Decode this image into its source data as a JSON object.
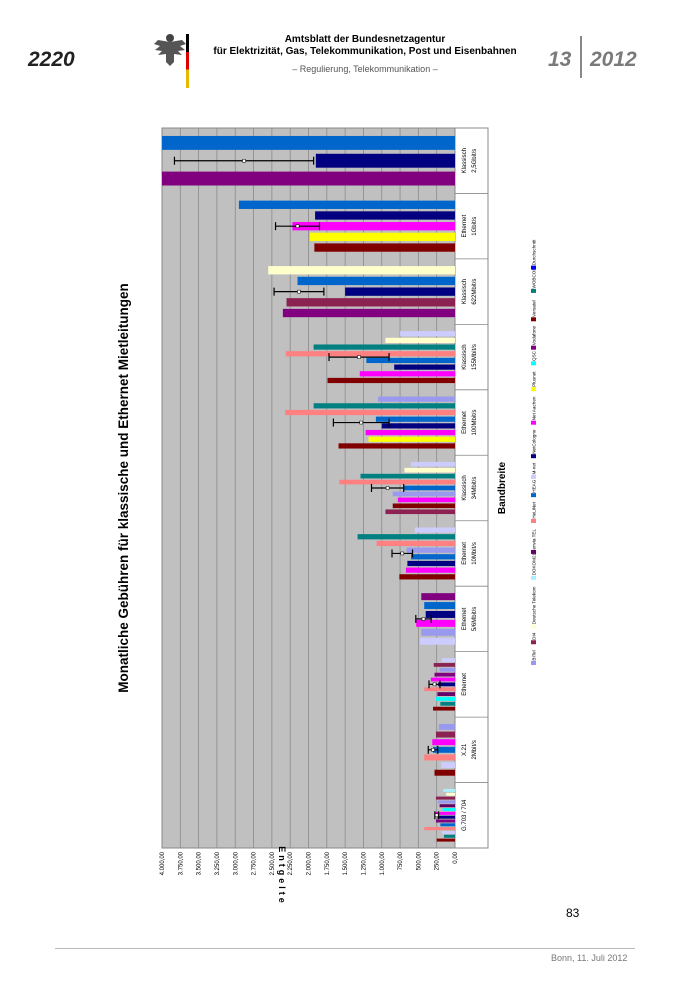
{
  "header": {
    "page_number": "2220",
    "title_line1": "Amtsblatt der Bundesnetzagentur",
    "title_line2": "für Elektrizität, Gas, Telekommunikation, Post und Eisenbahnen",
    "subtitle": "– Regulierung, Telekommunikation –",
    "issue_number": "13",
    "issue_year": "2012"
  },
  "footer": {
    "page_number": "83",
    "place_date": "Bonn, 11. Juli 2012"
  },
  "colors": {
    "plot_bg": "#c0c0c0",
    "error_bar": "#000000"
  },
  "chart_data": {
    "type": "bar",
    "orientation": "horizontal (page rotated)",
    "title": "Monatliche Gebühren für klassische und Ethernet Mietleitungen",
    "xlabel": "Bandbreite",
    "ylabel": "Entgelte",
    "ylim": [
      0,
      4000
    ],
    "tick_labels": [
      "0,00",
      "250,00",
      "500,00",
      "750,00",
      "1.000,00",
      "1.250,00",
      "1.500,00",
      "1.750,00",
      "2.000,00",
      "2.250,00",
      "2.500,00",
      "2.750,00",
      "3.000,00",
      "3.250,00",
      "3.500,00",
      "3.750,00",
      "4.000,00"
    ],
    "legend": [
      {
        "name": "BITel",
        "color": "#9999ee"
      },
      {
        "name": "DI4",
        "color": "#8b2252"
      },
      {
        "name": "Deutsche Telekom",
        "color": "#ffffcc"
      },
      {
        "name": "DOKOM21",
        "color": "#aaeeff"
      },
      {
        "name": "envia TEL",
        "color": "#660066"
      },
      {
        "name": "HeLiNet",
        "color": "#ff8080"
      },
      {
        "name": "HEAG",
        "color": "#0066cc"
      },
      {
        "name": "M-net",
        "color": "#ccccff"
      },
      {
        "name": "NetCologne",
        "color": "#000080"
      },
      {
        "name": "Net Aachen",
        "color": "#ff00ff"
      },
      {
        "name": "Plusnet",
        "color": "#ffff00"
      },
      {
        "name": "QSC",
        "color": "#00ffff"
      },
      {
        "name": "Vodafone",
        "color": "#800080"
      },
      {
        "name": "Versatel",
        "color": "#800000"
      },
      {
        "name": "WOBCOM",
        "color": "#008080"
      },
      {
        "name": "Durchschnitt",
        "color": "#0000ff"
      }
    ],
    "groups": [
      {
        "label_line1": "G.703 / 704",
        "label_line2": "",
        "mean": 250,
        "err": 25,
        "bars": [
          {
            "c": "#800000",
            "v": 250
          },
          {
            "c": "#008080",
            "v": 150
          },
          {
            "c": "#ccccff",
            "v": 180
          },
          {
            "c": "#ff8080",
            "v": 420
          },
          {
            "c": "#0066cc",
            "v": 200
          },
          {
            "c": "#800080",
            "v": 260
          },
          {
            "c": "#000080",
            "v": 240
          },
          {
            "c": "#ff00ff",
            "v": 280
          },
          {
            "c": "#00ffff",
            "v": 170
          },
          {
            "c": "#660066",
            "v": 210
          },
          {
            "c": "#9999ee",
            "v": 230
          },
          {
            "c": "#8b2252",
            "v": 260
          },
          {
            "c": "#ffffcc",
            "v": 120
          },
          {
            "c": "#aaeeff",
            "v": 160
          }
        ]
      },
      {
        "label_line1": "X.21",
        "label_line2": "2Mbit/s",
        "mean": 300,
        "err": 65,
        "bars": [
          {
            "c": "#800000",
            "v": 280
          },
          {
            "c": "#ccccff",
            "v": 190
          },
          {
            "c": "#ff8080",
            "v": 420
          },
          {
            "c": "#0066cc",
            "v": 300
          },
          {
            "c": "#ff00ff",
            "v": 310
          },
          {
            "c": "#8b2252",
            "v": 260
          },
          {
            "c": "#9999ee",
            "v": 220
          }
        ]
      },
      {
        "label_line1": "Ethernet",
        "label_line2": "",
        "mean": 280,
        "err": 75,
        "bars": [
          {
            "c": "#800000",
            "v": 300
          },
          {
            "c": "#008080",
            "v": 200
          },
          {
            "c": "#00ffff",
            "v": 260
          },
          {
            "c": "#660066",
            "v": 240
          },
          {
            "c": "#ff8080",
            "v": 420
          },
          {
            "c": "#000080",
            "v": 230
          },
          {
            "c": "#ff00ff",
            "v": 330
          },
          {
            "c": "#800080",
            "v": 280
          },
          {
            "c": "#9999ee",
            "v": 210
          },
          {
            "c": "#8b2252",
            "v": 290
          },
          {
            "c": "#ccccff",
            "v": 180
          }
        ]
      },
      {
        "label_line1": "Ethernet",
        "label_line2": "5/6Mbit/s",
        "mean": 430,
        "err": 105,
        "bars": [
          {
            "c": "#ccccff",
            "v": 480
          },
          {
            "c": "#9999ee",
            "v": 460
          },
          {
            "c": "#ff00ff",
            "v": 530
          },
          {
            "c": "#000080",
            "v": 400
          },
          {
            "c": "#0066cc",
            "v": 420
          },
          {
            "c": "#800080",
            "v": 460
          }
        ]
      },
      {
        "label_line1": "Ethernet",
        "label_line2": "10Mbit/s",
        "mean": 720,
        "err": 140,
        "bars": [
          {
            "c": "#800000",
            "v": 760
          },
          {
            "c": "#ff00ff",
            "v": 670
          },
          {
            "c": "#000080",
            "v": 650
          },
          {
            "c": "#0066cc",
            "v": 600
          },
          {
            "c": "#9999ee",
            "v": 660
          },
          {
            "c": "#ff8080",
            "v": 1070
          },
          {
            "c": "#008080",
            "v": 1330
          },
          {
            "c": "#ccccff",
            "v": 550
          }
        ]
      },
      {
        "label_line1": "Klassisch",
        "label_line2": "34Mbit/s",
        "mean": 920,
        "err": 220,
        "bars": [
          {
            "c": "#8b2252",
            "v": 950
          },
          {
            "c": "#800000",
            "v": 850
          },
          {
            "c": "#ff00ff",
            "v": 780
          },
          {
            "c": "#9999ee",
            "v": 850
          },
          {
            "c": "#0066cc",
            "v": 700
          },
          {
            "c": "#ff8080",
            "v": 1580
          },
          {
            "c": "#008080",
            "v": 1290
          },
          {
            "c": "#ffffcc",
            "v": 690
          },
          {
            "c": "#ccccff",
            "v": 600
          }
        ]
      },
      {
        "label_line1": "Ethernet",
        "label_line2": "100Mbit/s",
        "mean": 1280,
        "err": 380,
        "bars": [
          {
            "c": "#800000",
            "v": 1590
          },
          {
            "c": "#ffff00",
            "v": 1180
          },
          {
            "c": "#ff00ff",
            "v": 1220
          },
          {
            "c": "#000080",
            "v": 1000
          },
          {
            "c": "#0066cc",
            "v": 1080
          },
          {
            "c": "#ff8080",
            "v": 2320
          },
          {
            "c": "#008080",
            "v": 1930
          },
          {
            "c": "#9999ee",
            "v": 1050
          }
        ]
      },
      {
        "label_line1": "Klassisch",
        "label_line2": "155Mbit/s",
        "mean": 1310,
        "err": 410,
        "bars": [
          {
            "c": "#800000",
            "v": 1740
          },
          {
            "c": "#ff00ff",
            "v": 1300
          },
          {
            "c": "#000080",
            "v": 830
          },
          {
            "c": "#0066cc",
            "v": 1210
          },
          {
            "c": "#ff8080",
            "v": 2310
          },
          {
            "c": "#008080",
            "v": 1930
          },
          {
            "c": "#ffffcc",
            "v": 950
          },
          {
            "c": "#ccccff",
            "v": 750
          }
        ]
      },
      {
        "label_line1": "Klassisch",
        "label_line2": "622Mbit/s",
        "mean": 2130,
        "err": 340,
        "bars": [
          {
            "c": "#800080",
            "v": 2350
          },
          {
            "c": "#8b2252",
            "v": 2300
          },
          {
            "c": "#000080",
            "v": 1500
          },
          {
            "c": "#0066cc",
            "v": 2150
          },
          {
            "c": "#ffffcc",
            "v": 2550
          }
        ]
      },
      {
        "label_line1": "Ethernet",
        "label_line2": "1Gbit/s",
        "mean": 2150,
        "err": 300,
        "bars": [
          {
            "c": "#800000",
            "v": 1920
          },
          {
            "c": "#ffff00",
            "v": 1980
          },
          {
            "c": "#ff00ff",
            "v": 2220
          },
          {
            "c": "#000080",
            "v": 1910
          },
          {
            "c": "#0066cc",
            "v": 2950
          }
        ]
      },
      {
        "label_line1": "Klassisch",
        "label_line2": "2,5Gbit/s",
        "mean": 2880,
        "err": 950,
        "bars": [
          {
            "c": "#800080",
            "v": 4000
          },
          {
            "c": "#000080",
            "v": 1900
          },
          {
            "c": "#0066cc",
            "v": 4000
          }
        ]
      }
    ]
  }
}
